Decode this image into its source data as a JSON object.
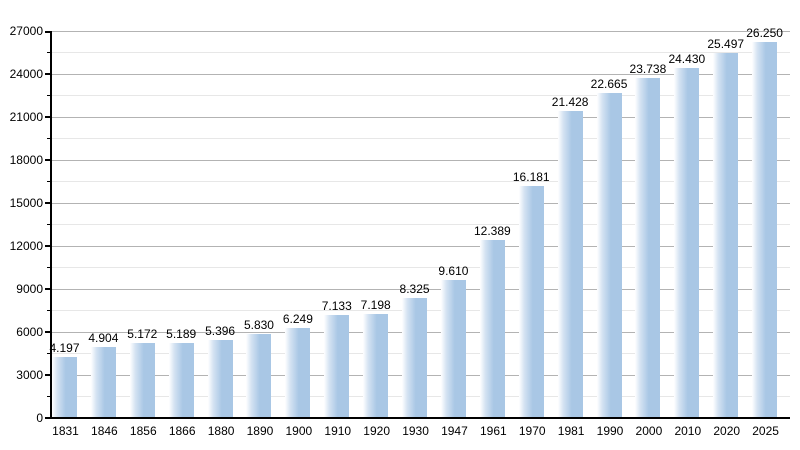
{
  "chart_data": {
    "type": "bar",
    "title": "",
    "xlabel": "",
    "ylabel": "",
    "categories": [
      "1831",
      "1846",
      "1856",
      "1866",
      "1880",
      "1890",
      "1900",
      "1910",
      "1920",
      "1930",
      "1947",
      "1961",
      "1970",
      "1981",
      "1990",
      "2000",
      "2010",
      "2020",
      "2025"
    ],
    "values": [
      4197,
      4904,
      5172,
      5189,
      5396,
      5830,
      6249,
      7133,
      7198,
      8325,
      9610,
      12389,
      16181,
      21428,
      22665,
      23738,
      24430,
      25497,
      26250
    ],
    "value_labels": [
      "4.197",
      "4.904",
      "5.172",
      "5.189",
      "5.396",
      "5.830",
      "6.249",
      "7.133",
      "7.198",
      "8.325",
      "9.610",
      "12.389",
      "16.181",
      "21.428",
      "22.665",
      "23.738",
      "24.430",
      "25.497",
      "26.250"
    ],
    "ylim": [
      0,
      27000
    ],
    "y_major_step": 3000,
    "y_minor_step": 1500,
    "y_tick_labels": [
      "0",
      "3000",
      "6000",
      "9000",
      "12000",
      "15000",
      "18000",
      "21000",
      "24000",
      "27000"
    ],
    "grid": true,
    "legend": false,
    "colors": {
      "bar_main": "#a9c7e5",
      "bar_gradient_start": "#ffffff",
      "bar_gradient_mid": "#d3e2f2",
      "major_grid": "#b3b3b3",
      "minor_grid": "#e7e7e7",
      "axis": "#000000",
      "text": "#000000",
      "background": "#ffffff"
    }
  }
}
